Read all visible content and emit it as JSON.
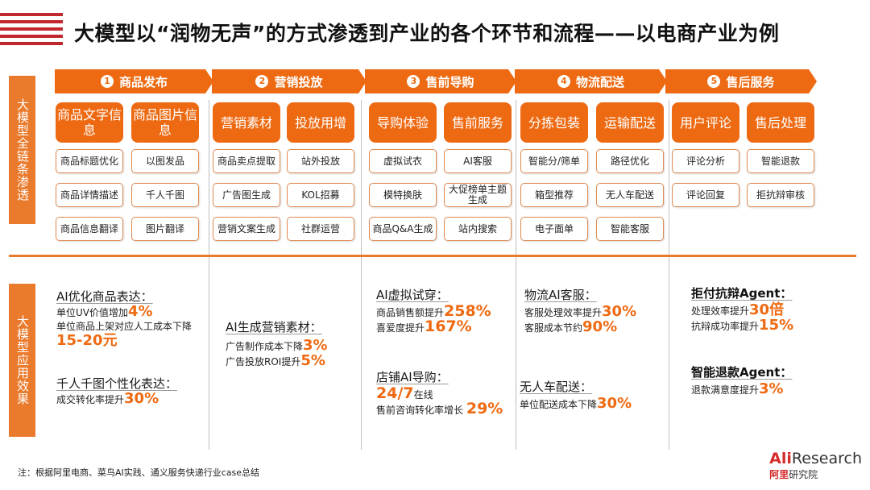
{
  "title": "大模型以“润物无声”的方式渗透到产业的各个环节和流程——以电商产业为例",
  "side_labels": {
    "top": "大模型全链条渗透",
    "bottom": "大模型应用效果"
  },
  "stages": [
    {
      "num": "1",
      "label": "商品发布"
    },
    {
      "num": "2",
      "label": "营销投放"
    },
    {
      "num": "3",
      "label": "售前导购"
    },
    {
      "num": "4",
      "label": "物流配送"
    },
    {
      "num": "5",
      "label": "售后服务"
    }
  ],
  "categories": {
    "c1": "商品文字信息",
    "c2": "商品图片信息",
    "c3": "营销素材",
    "c4": "投放用增",
    "c5": "导购体验",
    "c6": "售前服务",
    "c7": "分拣包装",
    "c8": "运输配送",
    "c9": "用户评论",
    "c10": "售后处理"
  },
  "items": {
    "s1a": "商品标题优化",
    "s1b": "商品详情描述",
    "s1c": "商品信息翻译",
    "s2a": "以图发品",
    "s2b": "千人千图",
    "s2c": "图片翻译",
    "s3a": "商品卖点提取",
    "s3b": "广告图生成",
    "s3c": "营销文案生成",
    "s4a": "站外投放",
    "s4b": "KOL招募",
    "s4c": "社群运营",
    "s5a": "虚拟试衣",
    "s5b": "模特换肤",
    "s5c": "商品Q&A生成",
    "s6a": "AI客服",
    "s6b": "大促榜单主题生成",
    "s6c": "站内搜索",
    "s7a": "智能分/筛单",
    "s7b": "箱型推荐",
    "s7c": "电子面单",
    "s8a": "路径优化",
    "s8b": "无人车配送",
    "s8c": "智能客服",
    "s9a": "评论分析",
    "s9b": "评论回复",
    "s10a": "智能退款",
    "s10b": "拒抗辩审核"
  },
  "effects": {
    "col1": {
      "h1": "AI优化商品表达：",
      "l1": "单位UV价值增加",
      "v1": "4%",
      "l2": "单位商品上架对应人工成本下降",
      "v2": "15-20元",
      "h2": "千人千图个性化表达：",
      "l3": "成交转化率提升",
      "v3": "30%"
    },
    "col2": {
      "h1": "AI生成营销素材：",
      "l1": "广告制作成本下降",
      "v1": "3%",
      "l2": "广告投放ROI提升",
      "v2": "5%"
    },
    "col3": {
      "h1": "AI虚拟试穿：",
      "l1": "商品销售额提升",
      "v1": "258%",
      "l2": "喜爱度提升",
      "v2": "167%",
      "h2": "店铺AI导购：",
      "v3": "24/7",
      "l3": "在线",
      "l4": "售前咨询转化率增长",
      "v4": "29%"
    },
    "col4": {
      "h1": "物流AI客服：",
      "l1": "客服处理效率提升",
      "v1": "30%",
      "l2": "客服成本节约",
      "v2": "90%",
      "h2": "无人车配送：",
      "l3": "单位配送成本下降",
      "v3": "30%"
    },
    "col5": {
      "h1": "拒付抗辩Agent：",
      "l1": "处理效率提升",
      "v1": "30倍",
      "l2": "抗辩成功率提升",
      "v2": "15%",
      "h2": "智能退款Agent：",
      "l3": "退款满意度提升",
      "v3": "3%"
    }
  },
  "note": "注：根据阿里电商、菜鸟AI实践、通义服务快递行业case总结",
  "logo": {
    "ali": "Ali",
    "research": "Research",
    "ali_cn": "阿里",
    "inst": "研究院"
  },
  "colors": {
    "accent": "#ee6a12",
    "side": "#ea7a2c",
    "stripe": "#c0282e"
  }
}
